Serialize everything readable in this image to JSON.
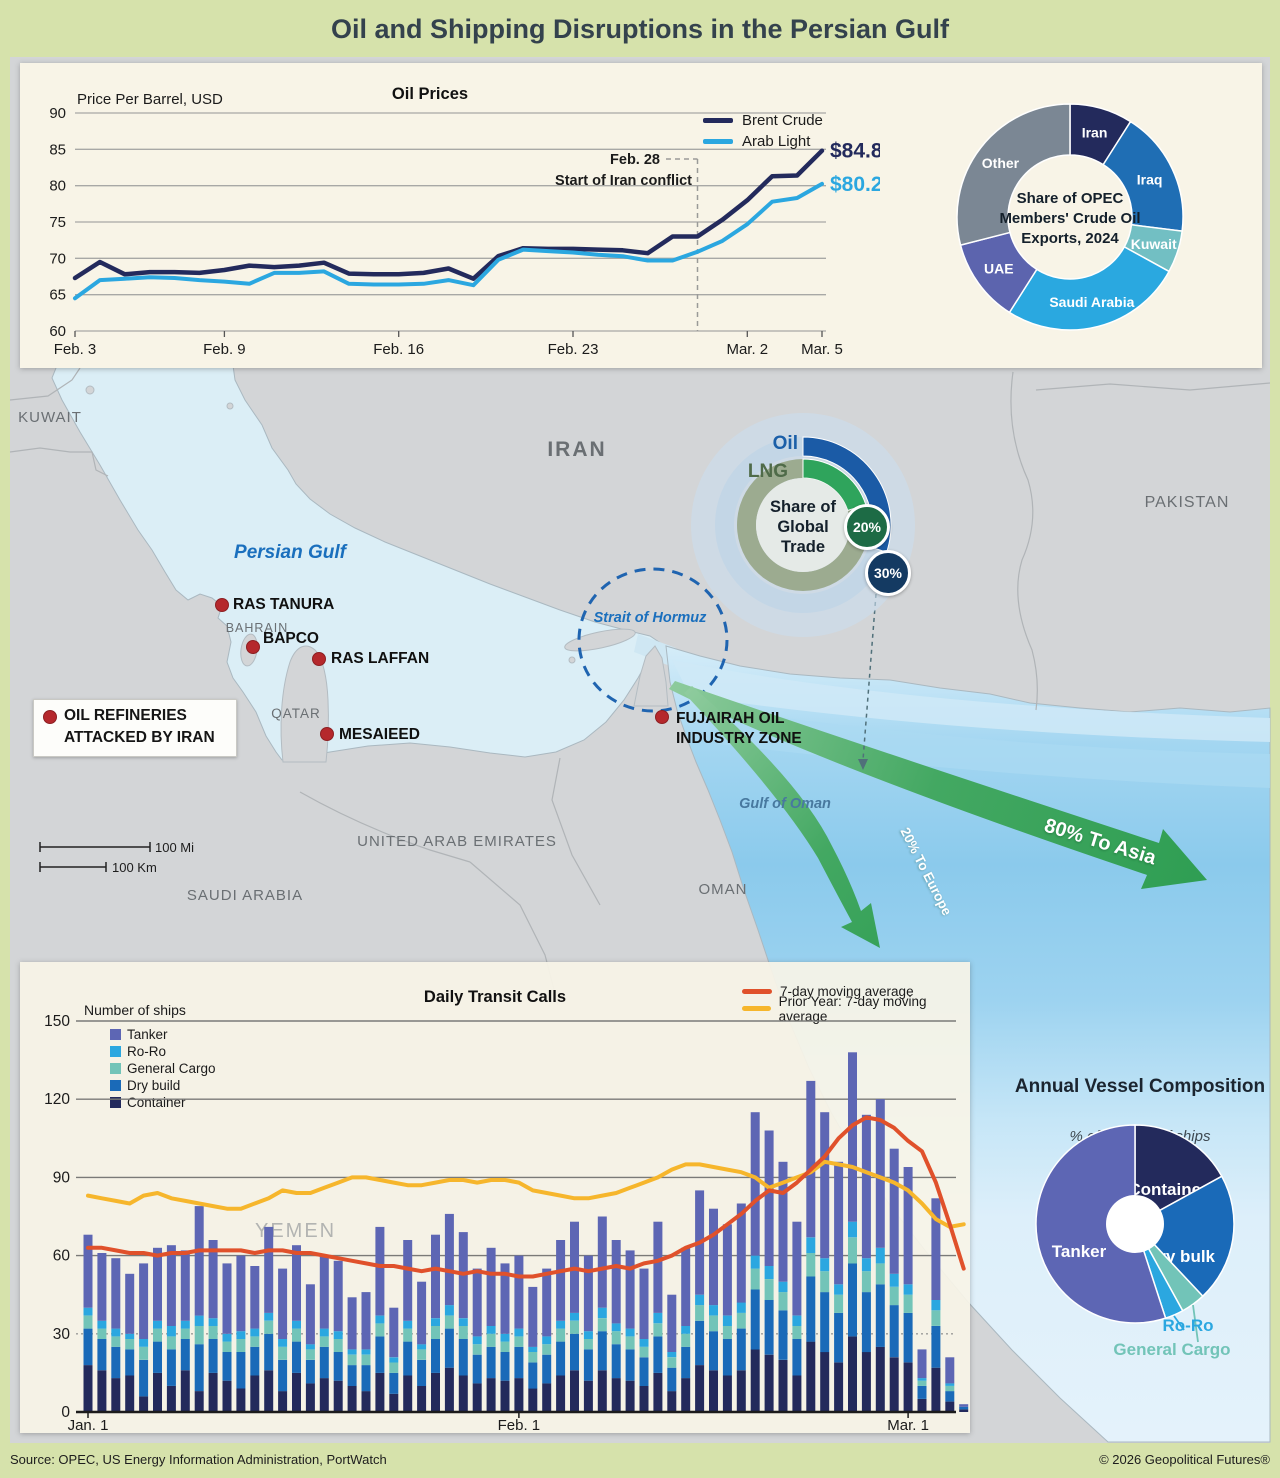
{
  "title": "Oil and Shipping Disruptions in the Persian Gulf",
  "footer": {
    "source": "Source: OPEC, US Energy Information Administration, PortWatch",
    "copyright": "© 2026 Geopolitical Futures®"
  },
  "map": {
    "labels": {
      "kuwait": "KUWAIT",
      "iran": "IRAN",
      "pakistan": "PAKISTAN",
      "uae": "UNITED ARAB EMIRATES",
      "saudi": "SAUDI ARABIA",
      "oman": "OMAN",
      "qatar": "QATAR",
      "bahrain": "BAHRAIN",
      "yemen": "YEMEN",
      "persian_gulf": "Persian Gulf",
      "gulf_of_oman": "Gulf of Oman",
      "strait": "Strait of Hormuz"
    },
    "refineries": [
      {
        "label": "RAS TANURA"
      },
      {
        "label": "BAPCO"
      },
      {
        "label": "RAS LAFFAN"
      },
      {
        "label": "MESAIEED"
      },
      {
        "label": "FUJAIRAH OIL INDUSTRY ZONE"
      }
    ],
    "refinery_legend": {
      "line1": "OIL REFINERIES",
      "line2": "ATTACKED BY IRAN"
    },
    "scale": {
      "mi": "100 Mi",
      "km": "100 Km"
    },
    "arrows": {
      "asia": "80% To Asia",
      "europe": "20% To Europe"
    },
    "dot_color": "#b5282c"
  },
  "chart_data": [
    {
      "type": "line",
      "title": "Oil Prices",
      "ylabel": "Price Per Barrel, USD",
      "ylim": [
        60,
        90
      ],
      "yticks": [
        90,
        85,
        80,
        75,
        70,
        65,
        60
      ],
      "xticks": [
        {
          "label": "Feb. 3",
          "day": 0
        },
        {
          "label": "Feb. 9",
          "day": 6
        },
        {
          "label": "Feb. 16",
          "day": 13
        },
        {
          "label": "Feb. 23",
          "day": 20
        },
        {
          "label": "Mar. 2",
          "day": 27
        },
        {
          "label": "Mar. 5",
          "day": 30
        }
      ],
      "annotation": {
        "line1": "Feb. 28",
        "line2": "Start of Iran conflict",
        "day": 25
      },
      "series": [
        {
          "name": "Brent Crude",
          "color": "#232a5c",
          "end_label": "$84.81",
          "values": [
            67.3,
            69.5,
            67.8,
            68.1,
            68.1,
            68.0,
            68.4,
            69.0,
            68.8,
            69.0,
            69.4,
            67.9,
            67.8,
            67.8,
            68.0,
            68.6,
            67.2,
            70.3,
            71.4,
            71.3,
            71.3,
            71.2,
            71.1,
            70.7,
            73.0,
            73.0,
            75.3,
            78.0,
            81.3,
            81.4,
            84.81
          ]
        },
        {
          "name": "Arab Light",
          "color": "#2ba7e0",
          "end_label": "$80.25",
          "values": [
            64.5,
            67.0,
            67.2,
            67.4,
            67.3,
            67.0,
            66.8,
            66.5,
            68.0,
            68.0,
            68.2,
            66.5,
            66.4,
            66.4,
            66.5,
            67.0,
            66.3,
            69.8,
            71.2,
            71.0,
            70.8,
            70.5,
            70.3,
            69.7,
            69.7,
            70.9,
            72.4,
            74.7,
            77.8,
            78.3,
            80.25
          ]
        }
      ]
    },
    {
      "type": "pie",
      "title_lines": [
        "Share of OPEC",
        "Members' Crude Oil",
        "Exports, 2024"
      ],
      "slices": [
        {
          "label": "Iran",
          "value": 9,
          "color": "#232a5c"
        },
        {
          "label": "Iraq",
          "value": 18,
          "color": "#1f6eb4"
        },
        {
          "label": "Kuwait",
          "value": 6,
          "color": "#72bfc3"
        },
        {
          "label": "Saudi Arabia",
          "value": 26,
          "color": "#2aa8e0"
        },
        {
          "label": "UAE",
          "value": 12,
          "color": "#5c64ae"
        },
        {
          "label": "Other",
          "value": 29,
          "color": "#7b8794"
        }
      ]
    },
    {
      "type": "pie",
      "center_lines": [
        "Share of",
        "Global",
        "Trade"
      ],
      "rings": [
        {
          "label": "Oil",
          "value": 30,
          "badge": "30%",
          "color": "#1b5ba6",
          "rest_color": "#c3d6e6",
          "badge_color": "#143a62",
          "label_color": "#1b5fa8"
        },
        {
          "label": "LNG",
          "value": 20,
          "badge": "20%",
          "color": "#2fa45c",
          "rest_color": "#9cab90",
          "badge_color": "#1d6b45",
          "label_color": "#4f6b49"
        }
      ]
    },
    {
      "type": "bar",
      "title": "Daily Transit Calls",
      "ylabel": "Number of ships",
      "ylim": [
        0,
        150
      ],
      "yticks": [
        150,
        120,
        90,
        60,
        30,
        0
      ],
      "xticks": [
        {
          "label": "Jan. 1",
          "index": 0
        },
        {
          "label": "Feb. 1",
          "index": 31
        },
        {
          "label": "Mar. 1",
          "index": 59
        }
      ],
      "series": [
        {
          "name": "Container",
          "color": "#232a5c",
          "values": [
            18,
            16,
            13,
            14,
            6,
            15,
            10,
            16,
            8,
            15,
            12,
            9,
            14,
            16,
            8,
            15,
            11,
            13,
            12,
            10,
            8,
            15,
            7,
            14,
            10,
            15,
            17,
            14,
            11,
            13,
            12,
            13,
            9,
            11,
            14,
            16,
            12,
            16,
            13,
            12,
            10,
            15,
            8,
            13,
            18,
            16,
            14,
            16,
            24,
            22,
            20,
            14,
            27,
            23,
            19,
            29,
            23,
            25,
            21,
            19,
            5,
            17,
            4,
            1
          ]
        },
        {
          "name": "Dry build",
          "color": "#1a6ab8",
          "values": [
            14,
            12,
            12,
            10,
            14,
            12,
            14,
            12,
            18,
            13,
            11,
            14,
            11,
            14,
            12,
            12,
            9,
            12,
            11,
            8,
            10,
            14,
            8,
            13,
            10,
            13,
            15,
            14,
            11,
            12,
            11,
            12,
            10,
            11,
            13,
            14,
            12,
            15,
            13,
            12,
            11,
            14,
            9,
            12,
            17,
            15,
            14,
            16,
            23,
            21,
            19,
            14,
            25,
            23,
            19,
            28,
            23,
            24,
            20,
            19,
            5,
            16,
            4,
            1
          ]
        },
        {
          "name": "General Cargo",
          "color": "#72c4b8",
          "values": [
            5,
            4,
            4,
            4,
            5,
            5,
            5,
            4,
            7,
            5,
            4,
            5,
            4,
            5,
            5,
            5,
            4,
            4,
            5,
            4,
            4,
            5,
            4,
            5,
            4,
            5,
            5,
            5,
            4,
            5,
            4,
            4,
            4,
            4,
            5,
            5,
            4,
            5,
            5,
            5,
            4,
            5,
            4,
            5,
            6,
            6,
            5,
            6,
            8,
            8,
            7,
            5,
            9,
            8,
            7,
            10,
            8,
            8,
            7,
            7,
            2,
            6,
            2,
            0
          ]
        },
        {
          "name": "Ro-Ro",
          "color": "#2ba7e0",
          "values": [
            3,
            3,
            3,
            2,
            3,
            3,
            4,
            3,
            4,
            3,
            3,
            3,
            3,
            3,
            3,
            3,
            2,
            3,
            3,
            2,
            2,
            3,
            2,
            3,
            2,
            3,
            4,
            3,
            3,
            3,
            3,
            3,
            2,
            3,
            3,
            3,
            3,
            4,
            3,
            3,
            3,
            4,
            2,
            3,
            4,
            4,
            4,
            4,
            5,
            5,
            4,
            4,
            6,
            5,
            4,
            6,
            5,
            6,
            5,
            4,
            1,
            4,
            1,
            0
          ]
        },
        {
          "name": "Tanker",
          "color": "#5d66b4",
          "values": [
            28,
            26,
            27,
            23,
            29,
            28,
            31,
            27,
            42,
            30,
            27,
            29,
            24,
            33,
            27,
            29,
            23,
            28,
            27,
            20,
            22,
            34,
            19,
            31,
            24,
            32,
            35,
            33,
            26,
            30,
            27,
            28,
            23,
            26,
            31,
            35,
            29,
            35,
            32,
            30,
            27,
            35,
            22,
            30,
            40,
            37,
            35,
            38,
            55,
            52,
            46,
            36,
            60,
            56,
            47,
            65,
            55,
            57,
            48,
            45,
            11,
            39,
            10,
            1
          ]
        }
      ],
      "ma": [
        {
          "label": "7-day moving average",
          "color": "#e0512b",
          "values": [
            63,
            63,
            62,
            61,
            61,
            60,
            61,
            61,
            62,
            62,
            62,
            62,
            61,
            62,
            62,
            61,
            61,
            60,
            59,
            58,
            57,
            56,
            56,
            55,
            54,
            55,
            54,
            53,
            54,
            53,
            53,
            52,
            52,
            53,
            54,
            55,
            54,
            55,
            56,
            55,
            57,
            58,
            60,
            63,
            65,
            68,
            72,
            76,
            81,
            85,
            84,
            88,
            93,
            98,
            105,
            110,
            113,
            112,
            109,
            104,
            100,
            88,
            72,
            55
          ]
        },
        {
          "label": "Prior Year: 7-day moving average",
          "color": "#f6b62c",
          "values": [
            83,
            82,
            81,
            80,
            83,
            84,
            82,
            81,
            80,
            79,
            78,
            78,
            80,
            82,
            85,
            84,
            84,
            86,
            88,
            90,
            90,
            89,
            88,
            87,
            87,
            88,
            89,
            89,
            88,
            89,
            89,
            88,
            85,
            84,
            83,
            82,
            82,
            83,
            84,
            86,
            88,
            90,
            93,
            95,
            95,
            94,
            93,
            92,
            90,
            86,
            88,
            90,
            92,
            96,
            95,
            94,
            92,
            90,
            88,
            85,
            80,
            74,
            71,
            72
          ]
        }
      ]
    },
    {
      "type": "pie",
      "title": "Annual Vessel Composition",
      "subtitle": "% of number of ships",
      "slices": [
        {
          "label": "Container",
          "value": 17,
          "color": "#232a5c"
        },
        {
          "label": "Dry bulk",
          "value": 21,
          "color": "#1a6ab8"
        },
        {
          "label": "General Cargo",
          "value": 4,
          "color": "#72c4b8"
        },
        {
          "label": "Ro-Ro",
          "value": 3,
          "color": "#2ba7e0"
        },
        {
          "label": "Tanker",
          "value": 55,
          "color": "#5d66b4"
        }
      ]
    }
  ]
}
